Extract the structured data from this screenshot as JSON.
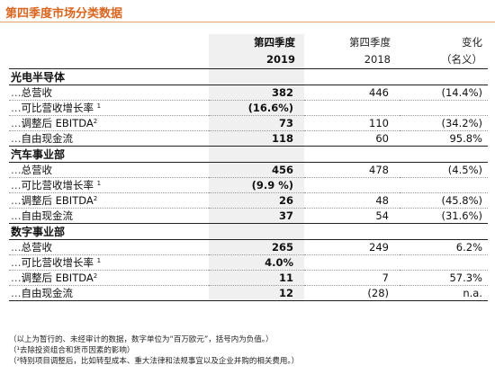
{
  "title": "第四季度市场分类数据",
  "header": {
    "col_2019_line1": "第四季度",
    "col_2019_line2": "2019",
    "col_2018_line1": "第四季度",
    "col_2018_line2": "2018",
    "col_chg_line1": "变化",
    "col_chg_line2": "（名义）"
  },
  "sections": [
    {
      "name": "光电半导体",
      "rows": [
        {
          "label": "总营收",
          "sup": "",
          "v2019": "382",
          "v2018": "446",
          "chg": "(14.4%)"
        },
        {
          "label": "可比营收增长率",
          "sup": "1",
          "v2019": "(16.6%)",
          "v2018": "",
          "chg": ""
        },
        {
          "label": "调整后 EBITDA",
          "sup": "2",
          "v2019": "73",
          "v2018": "110",
          "chg": "(34.2%)"
        },
        {
          "label": "自由现金流",
          "sup": "",
          "v2019": "118",
          "v2018": "60",
          "chg": "95.8%"
        }
      ]
    },
    {
      "name": "汽车事业部",
      "rows": [
        {
          "label": "总营收",
          "sup": "",
          "v2019": "456",
          "v2018": "478",
          "chg": "(4.5%)"
        },
        {
          "label": "可比营收增长率",
          "sup": "1",
          "v2019": "(9.9 %)",
          "v2018": "",
          "chg": ""
        },
        {
          "label": "调整后 EBITDA",
          "sup": "2",
          "v2019": "26",
          "v2018": "48",
          "chg": "(45.8%)"
        },
        {
          "label": "自由现金流",
          "sup": "",
          "v2019": "37",
          "v2018": "54",
          "chg": "(31.6%)"
        }
      ]
    },
    {
      "name": "数字事业部",
      "rows": [
        {
          "label": "总营收",
          "sup": "",
          "v2019": "265",
          "v2018": "249",
          "chg": "6.2%"
        },
        {
          "label": "可比营收增长率",
          "sup": "1",
          "v2019": "4.0%",
          "v2018": "",
          "chg": ""
        },
        {
          "label": "调整后 EBITDA",
          "sup": "2",
          "v2019": "11",
          "v2018": "7",
          "chg": "57.3%"
        },
        {
          "label": "自由现金流",
          "sup": "",
          "v2019": "12",
          "v2018": "(28)",
          "chg": "n.a."
        }
      ]
    }
  ],
  "notes": [
    "（以上为暂行的、未经审计的数据，数字单位为“百万欧元”，括号内为负值。）",
    "（¹去除投资组合和货币因素的影响）",
    "（²特别项目调整后，比如转型成本、重大法律和法规事宜以及企业并购的相关费用。）"
  ]
}
